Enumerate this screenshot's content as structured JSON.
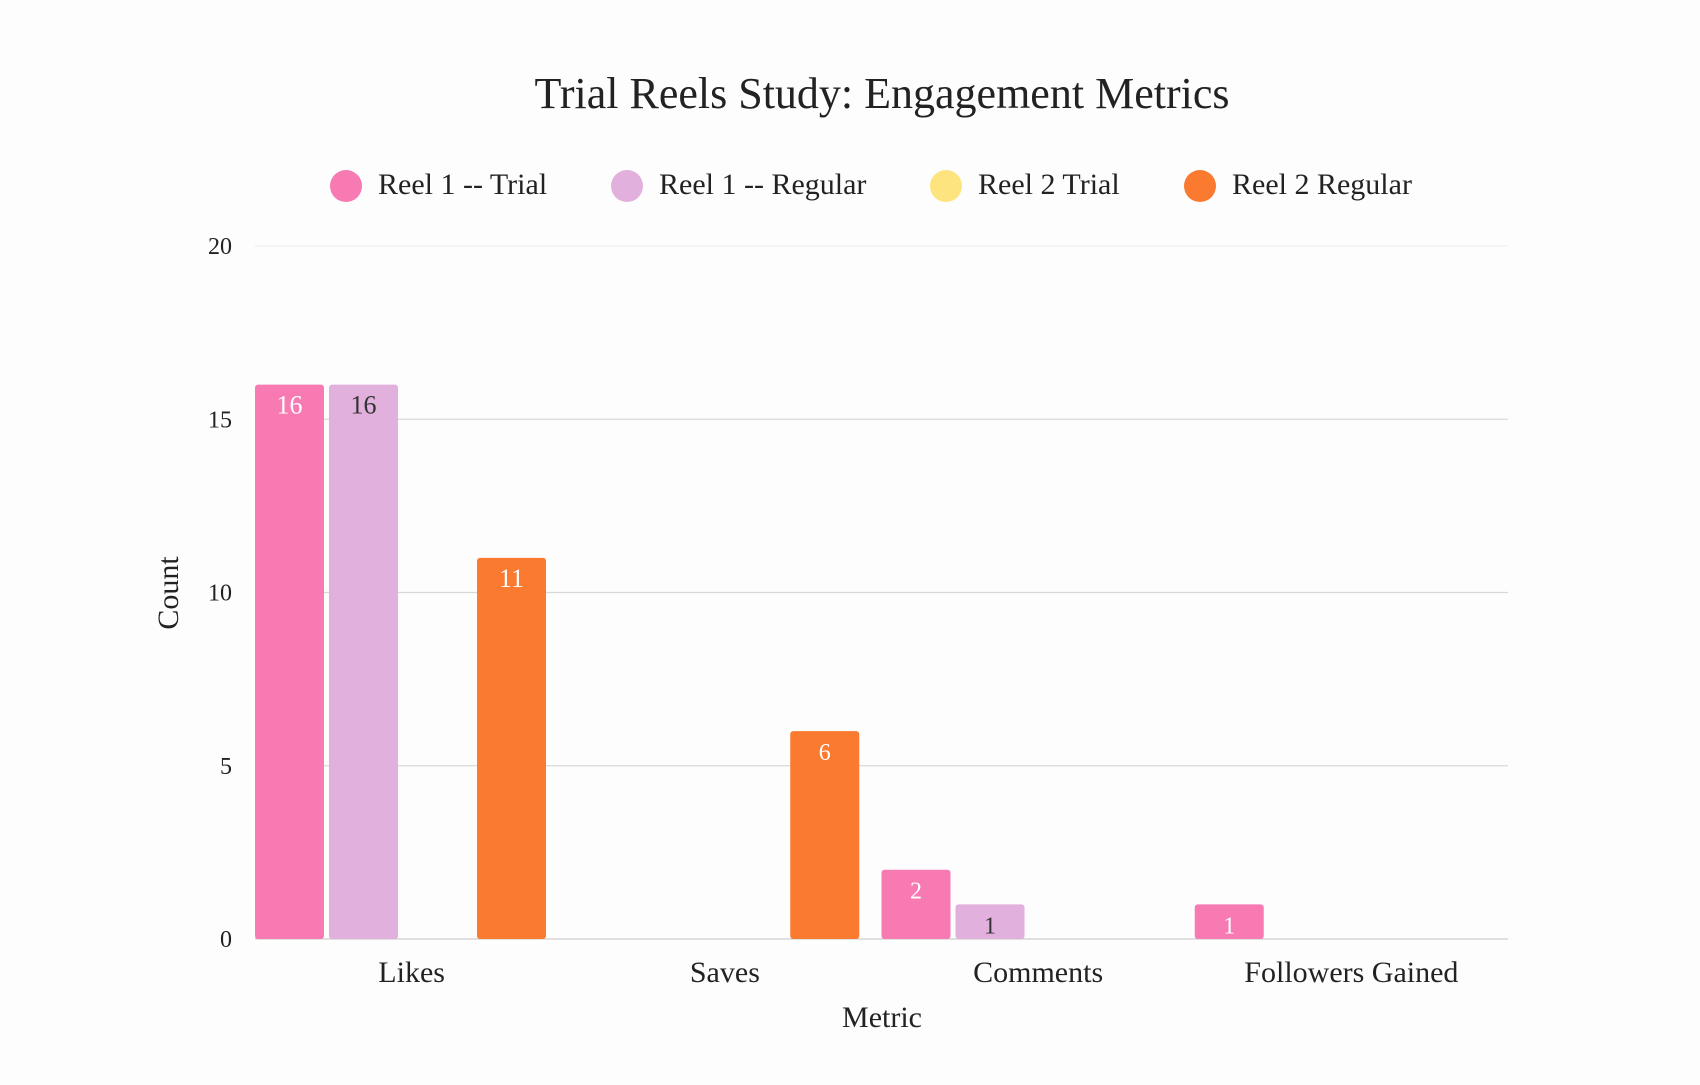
{
  "chart_data": {
    "type": "bar",
    "title": "Trial Reels Study: Engagement Metrics",
    "xlabel": "Metric",
    "ylabel": "Count",
    "ylim": [
      0,
      20
    ],
    "yticks": [
      "0",
      "5",
      "10",
      "15",
      "20"
    ],
    "grid": true,
    "legend_position": "top",
    "categories": [
      "Likes",
      "Saves",
      "Comments",
      "Followers Gained"
    ],
    "series": [
      {
        "name": "Reel 1 -- Trial",
        "color": "#f77ab3",
        "label_color": "#ffffff",
        "values": [
          16,
          0,
          2,
          1
        ]
      },
      {
        "name": "Reel 1 -- Regular",
        "color": "#e2b0dc",
        "label_color": "#333333",
        "values": [
          16,
          0,
          1,
          0
        ]
      },
      {
        "name": "Reel 2 Trial",
        "color": "#fde47f",
        "label_color": "#333333",
        "values": [
          0,
          0,
          0,
          0
        ]
      },
      {
        "name": "Reel 2 Regular",
        "color": "#fa7a30",
        "label_color": "#ffffff",
        "values": [
          11,
          6,
          0,
          0
        ]
      }
    ]
  }
}
